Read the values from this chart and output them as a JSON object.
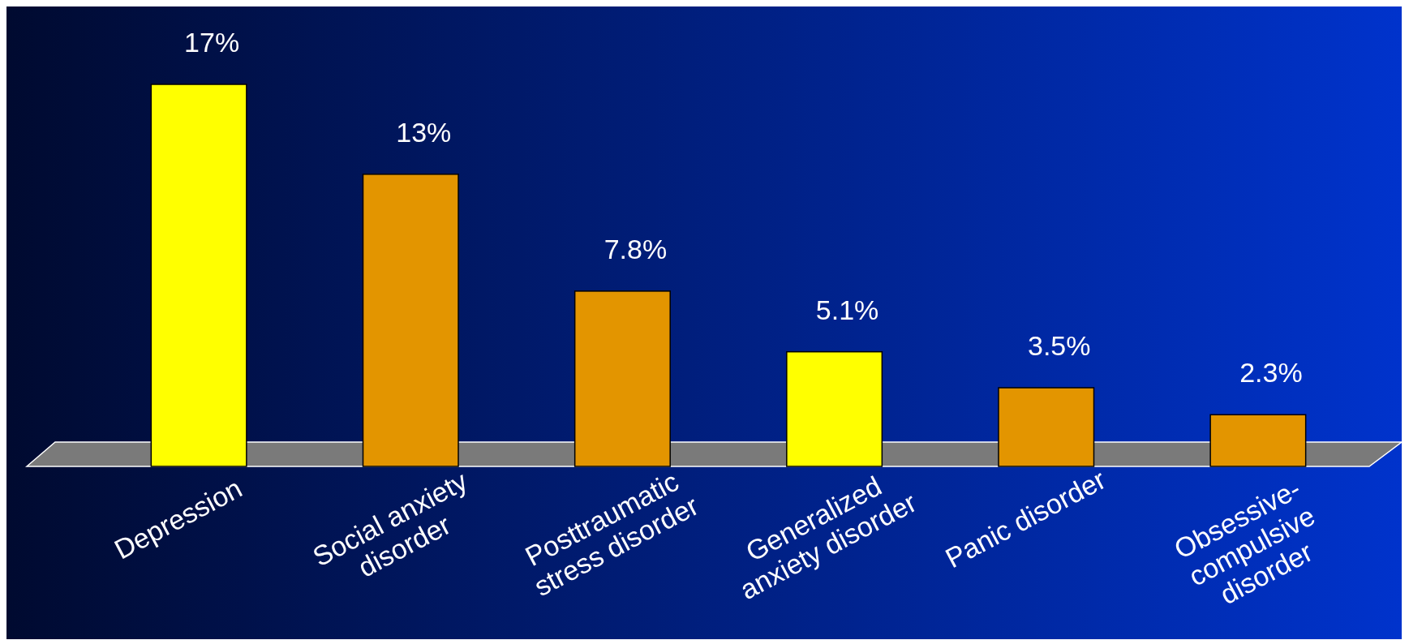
{
  "chart_data": {
    "type": "bar",
    "categories": [
      "Depression",
      "Social anxiety disorder",
      "Posttraumatic stress disorder",
      "Generalized anxiety disorder",
      "Panic disorder",
      "Obsessive-compulsive disorder"
    ],
    "values": [
      17,
      13,
      7.8,
      5.1,
      3.5,
      2.3
    ],
    "colors": [
      "#ffff00",
      "#e39500",
      "#e39500",
      "#ffff00",
      "#e39500",
      "#e39500"
    ],
    "value_labels": [
      "17%",
      "13%",
      "7.8%",
      "5.1%",
      "3.5%",
      "2.3%"
    ],
    "grid": false
  }
}
